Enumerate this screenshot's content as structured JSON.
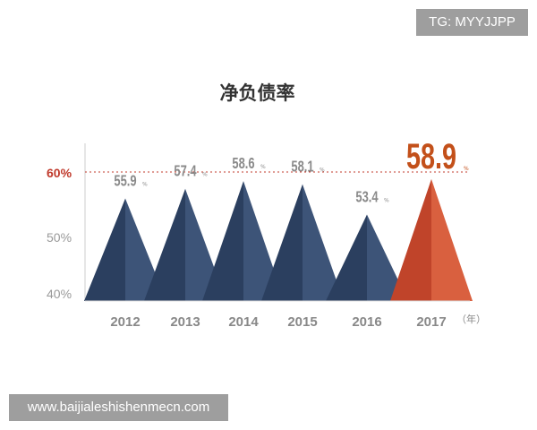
{
  "watermark_top": "TG: MYYJJPP",
  "watermark_bottom": "www.baijialeshishenmecn.com",
  "chart_data": {
    "type": "bar",
    "style": "triangles",
    "title": "净负债率",
    "categories": [
      "2012",
      "2013",
      "2014",
      "2015",
      "2016",
      "2017"
    ],
    "values": [
      55.9,
      57.4,
      58.6,
      58.1,
      53.4,
      58.9
    ],
    "value_unit": "%",
    "x_unit_label": "（年）",
    "ylim": [
      40,
      60
    ],
    "yticks": [
      "40%",
      "50%",
      "60%"
    ],
    "reference_line": {
      "value": 60,
      "label": "60%",
      "color": "#c0392b"
    },
    "colors": {
      "normal_dark": "#2b3f5f",
      "normal_light": "#3d5478",
      "highlight_dark": "#c0442a",
      "highlight_light": "#d9603f",
      "highlight_label": "#c3501a",
      "label": "#8a8a8a"
    },
    "highlight": "2017"
  }
}
